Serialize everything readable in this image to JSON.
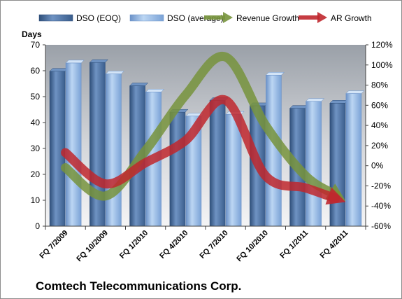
{
  "chart_data": {
    "type": "bar",
    "company": "Comtech Telecommunications Corp.",
    "ylabel_left": "Days",
    "categories": [
      "FQ 7/2009",
      "FQ 10/2009",
      "FQ 1/2010",
      "FQ 4/2010",
      "FQ 7/2010",
      "FQ 10/2010",
      "FQ 1/2011",
      "FQ 4/2011"
    ],
    "ylim_left": [
      0,
      70
    ],
    "yticks_left": [
      0,
      10,
      20,
      30,
      40,
      50,
      60,
      70
    ],
    "ylim_right": [
      -60,
      120
    ],
    "yticks_right": [
      "-60%",
      "-40%",
      "-20%",
      "0%",
      "20%",
      "40%",
      "60%",
      "80%",
      "100%",
      "120%"
    ],
    "series": [
      {
        "name": "DSO (EOQ)",
        "kind": "bar",
        "axis": "left",
        "color": "#4a6e9c",
        "values": [
          59.8,
          63.2,
          54.2,
          44.0,
          48.5,
          46.5,
          45.5,
          47.5
        ]
      },
      {
        "name": "DSO (average)",
        "kind": "bar",
        "axis": "left",
        "color": "#8fb4e3",
        "values": [
          63.0,
          58.8,
          51.8,
          42.5,
          43.2,
          58.3,
          48.2,
          51.2
        ]
      },
      {
        "name": "Revenue Growth",
        "kind": "arrow-line",
        "axis": "right",
        "color": "#77933c",
        "values": [
          -2,
          -30,
          15,
          70,
          108,
          40,
          -10,
          -35
        ]
      },
      {
        "name": "AR Growth",
        "kind": "arrow-line",
        "axis": "right",
        "color": "#c0272d",
        "values": [
          13,
          -18,
          3,
          25,
          65,
          -10,
          -22,
          -36
        ]
      }
    ],
    "grid": false,
    "legend_position": "top"
  }
}
